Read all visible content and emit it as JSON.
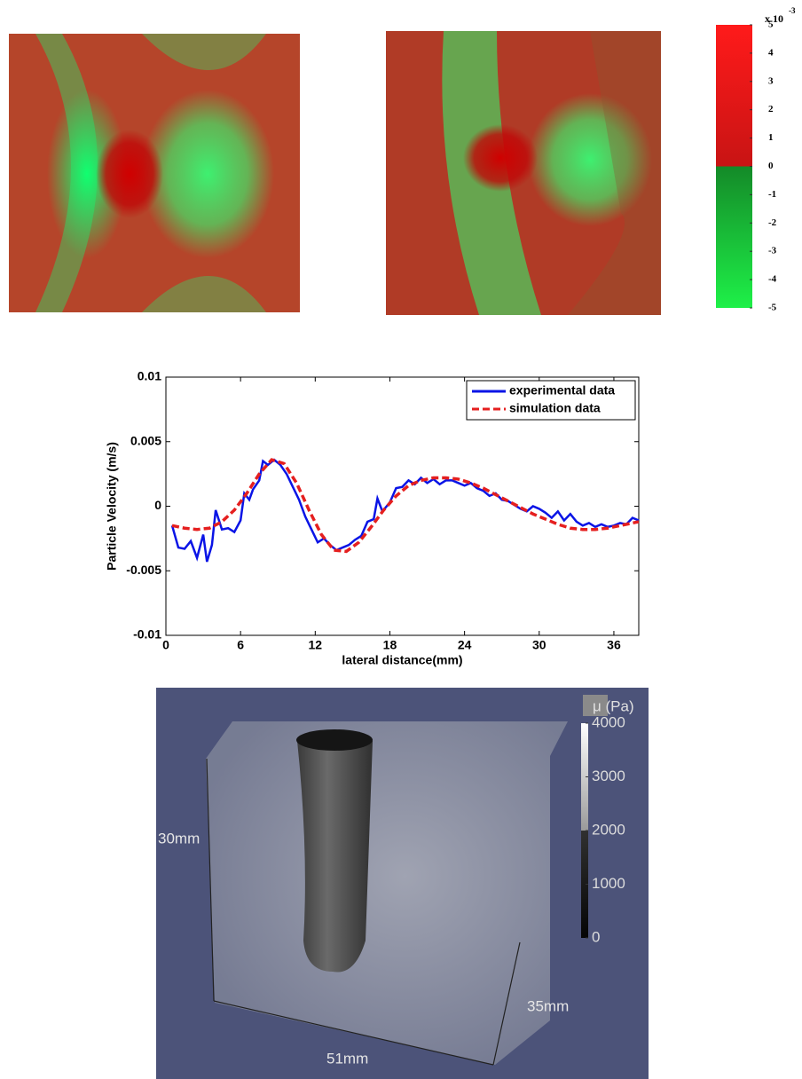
{
  "chart_data": [
    {
      "type": "colorbar",
      "multiplier": "x 10",
      "multiplier_exponent": "-3",
      "ylim": [
        -5,
        5
      ],
      "yticks": [
        5,
        4,
        3,
        2,
        1,
        0,
        -1,
        -2,
        -3,
        -4,
        -5
      ]
    },
    {
      "type": "line",
      "ylabel": "Particle Velocity (m/s)",
      "xlabel": "lateral distance(mm)",
      "xlim": [
        0,
        38
      ],
      "xticks": [
        0,
        6,
        12,
        18,
        24,
        30,
        36
      ],
      "ylim": [
        -0.01,
        0.01
      ],
      "yticks": [
        0.01,
        0.005,
        0,
        -0.005,
        -0.01
      ],
      "legend": "upper right",
      "series": [
        {
          "name": "experimental data",
          "color": "#0a14e6",
          "style": "solid",
          "x": [
            0.5,
            1,
            1.5,
            2,
            2.5,
            3,
            3.3,
            3.7,
            4,
            4.5,
            5,
            5.5,
            6,
            6.3,
            6.7,
            7,
            7.5,
            7.8,
            8.2,
            8.7,
            9.2,
            9.7,
            10.2,
            10.7,
            11.2,
            11.7,
            12.2,
            12.7,
            13.2,
            13.7,
            14.2,
            14.7,
            15.2,
            15.7,
            16.2,
            16.7,
            17,
            17.4,
            18,
            18.5,
            19,
            19.5,
            20,
            20.5,
            21,
            21.5,
            22,
            22.5,
            23,
            23.5,
            24,
            24.5,
            25,
            25.5,
            26,
            26.5,
            27,
            27.5,
            28,
            28.5,
            29,
            29.5,
            30,
            30.5,
            31,
            31.5,
            32,
            32.5,
            33,
            33.5,
            34,
            34.5,
            35,
            35.5,
            36,
            36.5,
            37,
            37.5,
            38
          ],
          "values": [
            -0.0015,
            -0.0032,
            -0.0033,
            -0.0027,
            -0.004,
            -0.0022,
            -0.0043,
            -0.003,
            -0.0003,
            -0.0018,
            -0.0017,
            -0.002,
            -0.0011,
            0.001,
            0.0005,
            0.0013,
            0.002,
            0.0035,
            0.0032,
            0.0036,
            0.0032,
            0.0025,
            0.0015,
            0.0005,
            -0.0008,
            -0.0018,
            -0.0028,
            -0.0025,
            -0.003,
            -0.0034,
            -0.0032,
            -0.003,
            -0.0026,
            -0.0023,
            -0.0012,
            -0.001,
            0.0006,
            -0.0004,
            0.0003,
            0.0014,
            0.0015,
            0.002,
            0.0017,
            0.0022,
            0.0018,
            0.0021,
            0.0017,
            0.002,
            0.002,
            0.0018,
            0.0016,
            0.0018,
            0.0014,
            0.0012,
            0.0008,
            0.001,
            0.0005,
            0.0004,
            0.0001,
            -0.0002,
            -0.0004,
            0,
            -0.0002,
            -0.0005,
            -0.0009,
            -0.0004,
            -0.0011,
            -0.0006,
            -0.0012,
            -0.0015,
            -0.0013,
            -0.0016,
            -0.0014,
            -0.0016,
            -0.0015,
            -0.0013,
            -0.0014,
            -0.0009,
            -0.0011
          ]
        },
        {
          "name": "simulation data",
          "color": "#e51f1f",
          "style": "dashed",
          "x": [
            0.5,
            1.5,
            2.5,
            3.5,
            4.5,
            5.5,
            6.5,
            7.5,
            8.5,
            9.5,
            10.5,
            11.5,
            12.5,
            13.5,
            14.5,
            15.5,
            16.5,
            17.5,
            18.5,
            19.5,
            20.5,
            21.5,
            22.5,
            23.5,
            24.5,
            25.5,
            26.5,
            27.5,
            28.5,
            29.5,
            30.5,
            31.5,
            32.5,
            33.5,
            34.5,
            35.5,
            36.5,
            37.5,
            38
          ],
          "values": [
            -0.0015,
            -0.0017,
            -0.0018,
            -0.0017,
            -0.0012,
            -0.0003,
            0.001,
            0.0025,
            0.0036,
            0.0033,
            0.0018,
            -0.0003,
            -0.0022,
            -0.0034,
            -0.0035,
            -0.0028,
            -0.0016,
            -0.0003,
            0.0008,
            0.0016,
            0.002,
            0.0022,
            0.0022,
            0.0021,
            0.0018,
            0.0014,
            0.0009,
            0.0004,
            -0.0001,
            -0.0006,
            -0.001,
            -0.0014,
            -0.0017,
            -0.0018,
            -0.0018,
            -0.0017,
            -0.0015,
            -0.0013,
            -0.0012
          ]
        }
      ]
    },
    {
      "type": "colorbar",
      "title": "μ (Pa)",
      "ylim": [
        0,
        4000
      ],
      "yticks": [
        4000,
        3000,
        2000,
        1000,
        0
      ]
    }
  ],
  "render": {
    "labels": [
      "30mm",
      "51mm",
      "35mm"
    ]
  }
}
